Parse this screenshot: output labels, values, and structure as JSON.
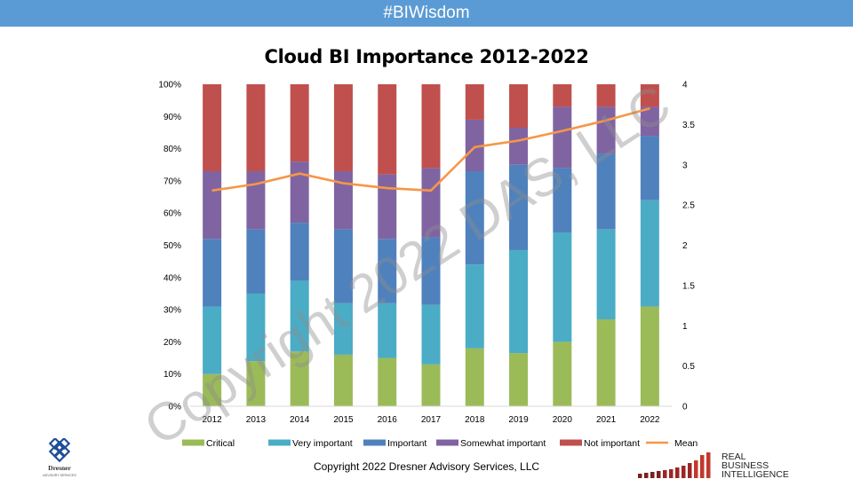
{
  "header": {
    "banner_text": "#BIWisdom"
  },
  "chart_data": {
    "type": "bar",
    "stacked": true,
    "normalized": true,
    "title": "Cloud BI Importance 2012-2022",
    "categories": [
      "2012",
      "2013",
      "2014",
      "2015",
      "2016",
      "2017",
      "2018",
      "2019",
      "2020",
      "2021",
      "2022"
    ],
    "series": [
      {
        "name": "Critical",
        "color": "#9bbb59",
        "values": [
          10,
          14,
          17,
          16,
          15,
          13,
          18,
          16.5,
          20,
          27,
          31
        ]
      },
      {
        "name": "Very important",
        "color": "#4bacc6",
        "values": [
          21,
          21,
          22,
          16,
          17,
          18.5,
          26,
          32,
          34,
          28,
          33
        ]
      },
      {
        "name": "Important",
        "color": "#4f81bd",
        "values": [
          21,
          20,
          18,
          23,
          20,
          21,
          29,
          26.5,
          20,
          23.5,
          20
        ]
      },
      {
        "name": "Somewhat important",
        "color": "#8064a2",
        "values": [
          21,
          18,
          19,
          18,
          20,
          21.5,
          16,
          11.5,
          19,
          14.5,
          9
        ]
      },
      {
        "name": "Not important",
        "color": "#c0504d",
        "values": [
          27,
          27,
          24,
          27,
          28,
          26,
          11,
          13.5,
          7,
          7,
          7
        ]
      }
    ],
    "line_series": {
      "name": "Mean",
      "color": "#f79646",
      "axis": "right",
      "values": [
        2.68,
        2.76,
        2.89,
        2.77,
        2.71,
        2.68,
        3.22,
        3.3,
        3.42,
        3.55,
        3.7
      ]
    },
    "y_left": {
      "ylim": [
        0,
        100
      ],
      "ticks": [
        "0%",
        "10%",
        "20%",
        "30%",
        "40%",
        "50%",
        "60%",
        "70%",
        "80%",
        "90%",
        "100%"
      ]
    },
    "y_right": {
      "ylim": [
        0,
        4
      ],
      "ticks": [
        "0",
        "0.5",
        "1",
        "1.5",
        "2",
        "2.5",
        "3",
        "3.5",
        "4"
      ]
    },
    "legend_position": "bottom",
    "grid": false
  },
  "watermark_text": "Copyright 2022 DAS, LLC",
  "footer": {
    "copyright": "Copyright 2022 Dresner Advisory Services, LLC"
  },
  "logos": {
    "left_name": "Dresner",
    "left_sub": "ADVISORY SERVICES",
    "right_lines": [
      "REAL",
      "BUSINESS",
      "INTELLIGENCE"
    ]
  }
}
